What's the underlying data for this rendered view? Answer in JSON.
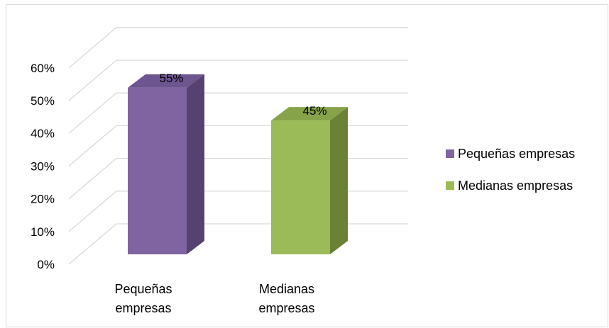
{
  "chart_data": {
    "type": "bar",
    "title": "",
    "xlabel": "",
    "ylabel": "",
    "categories": [
      "Pequeñas empresas",
      "Medianas empresas"
    ],
    "category_lines": [
      [
        "Pequeñas",
        "empresas"
      ],
      [
        "Medianas",
        "empresas"
      ]
    ],
    "values": [
      55,
      45
    ],
    "data_labels": [
      "55%",
      "45%"
    ],
    "ylim": [
      0,
      60
    ],
    "yticks": [
      "0%",
      "10%",
      "20%",
      "30%",
      "40%",
      "50%",
      "60%"
    ],
    "grid": true,
    "style": "3d-column",
    "legend_position": "right",
    "legend": [
      {
        "name": "Pequeñas empresas",
        "color": "#8064a2"
      },
      {
        "name": "Medianas empresas",
        "color": "#9bbb59"
      }
    ],
    "colors": {
      "bar_front": [
        "#8064a2",
        "#9bbb59"
      ],
      "bar_side": [
        "#564270",
        "#6a8136"
      ],
      "bar_top": [
        "#6d5590",
        "#86a34a"
      ],
      "gridline": "#d9d9d9"
    }
  }
}
